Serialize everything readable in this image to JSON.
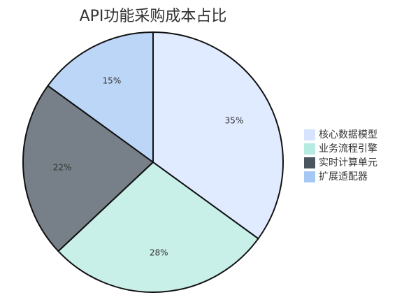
{
  "chart_data": {
    "type": "pie",
    "title": "API功能采购成本占比",
    "categories": [
      "核心数据模型",
      "业务流程引擎",
      "实时计算单元",
      "扩展适配器"
    ],
    "values": [
      35,
      28,
      22,
      15
    ],
    "value_labels": [
      "35%",
      "28%",
      "22%",
      "15%"
    ],
    "colors": [
      "#d6e4ff",
      "#b5ebe0",
      "#4a5560",
      "#a6c8f5"
    ],
    "legend": "right"
  }
}
